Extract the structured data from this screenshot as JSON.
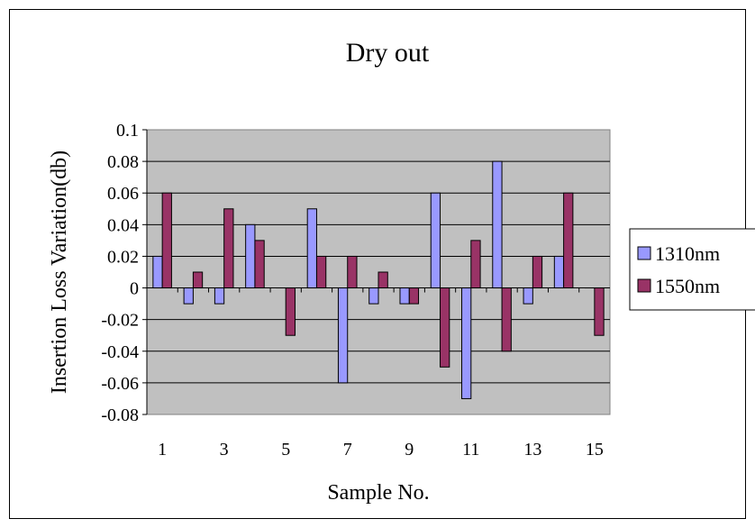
{
  "chart_data": {
    "type": "bar",
    "title": "Dry out",
    "xlabel": "Sample No.",
    "ylabel": "Insertion Loss Variation(db)",
    "ylim": [
      -0.08,
      0.1
    ],
    "y_ticks": [
      "0.1",
      "0.08",
      "0.06",
      "0.04",
      "0.02",
      "0",
      "-0.02",
      "-0.04",
      "-0.06",
      "-0.08"
    ],
    "categories": [
      "1",
      "2",
      "3",
      "4",
      "5",
      "6",
      "7",
      "8",
      "9",
      "10",
      "11",
      "12",
      "13",
      "14",
      "15"
    ],
    "x_tick_labels": [
      "1",
      "",
      "3",
      "",
      "5",
      "",
      "7",
      "",
      "9",
      "",
      "11",
      "",
      "13",
      "",
      "15"
    ],
    "grid": true,
    "legend": "right",
    "series": [
      {
        "name": "1310nm",
        "color": "#9999ff",
        "values": [
          0.02,
          -0.01,
          -0.01,
          0.04,
          0,
          0.05,
          -0.06,
          -0.01,
          -0.01,
          0.06,
          -0.07,
          0.08,
          -0.01,
          0.02,
          0
        ]
      },
      {
        "name": "1550nm",
        "color": "#993366",
        "values": [
          0.06,
          0.01,
          0.05,
          0.03,
          -0.03,
          0.02,
          0.02,
          0.01,
          -0.01,
          -0.05,
          0.03,
          -0.04,
          0.02,
          0.06,
          -0.03
        ]
      }
    ],
    "plot_background": "#c0c0c0"
  }
}
